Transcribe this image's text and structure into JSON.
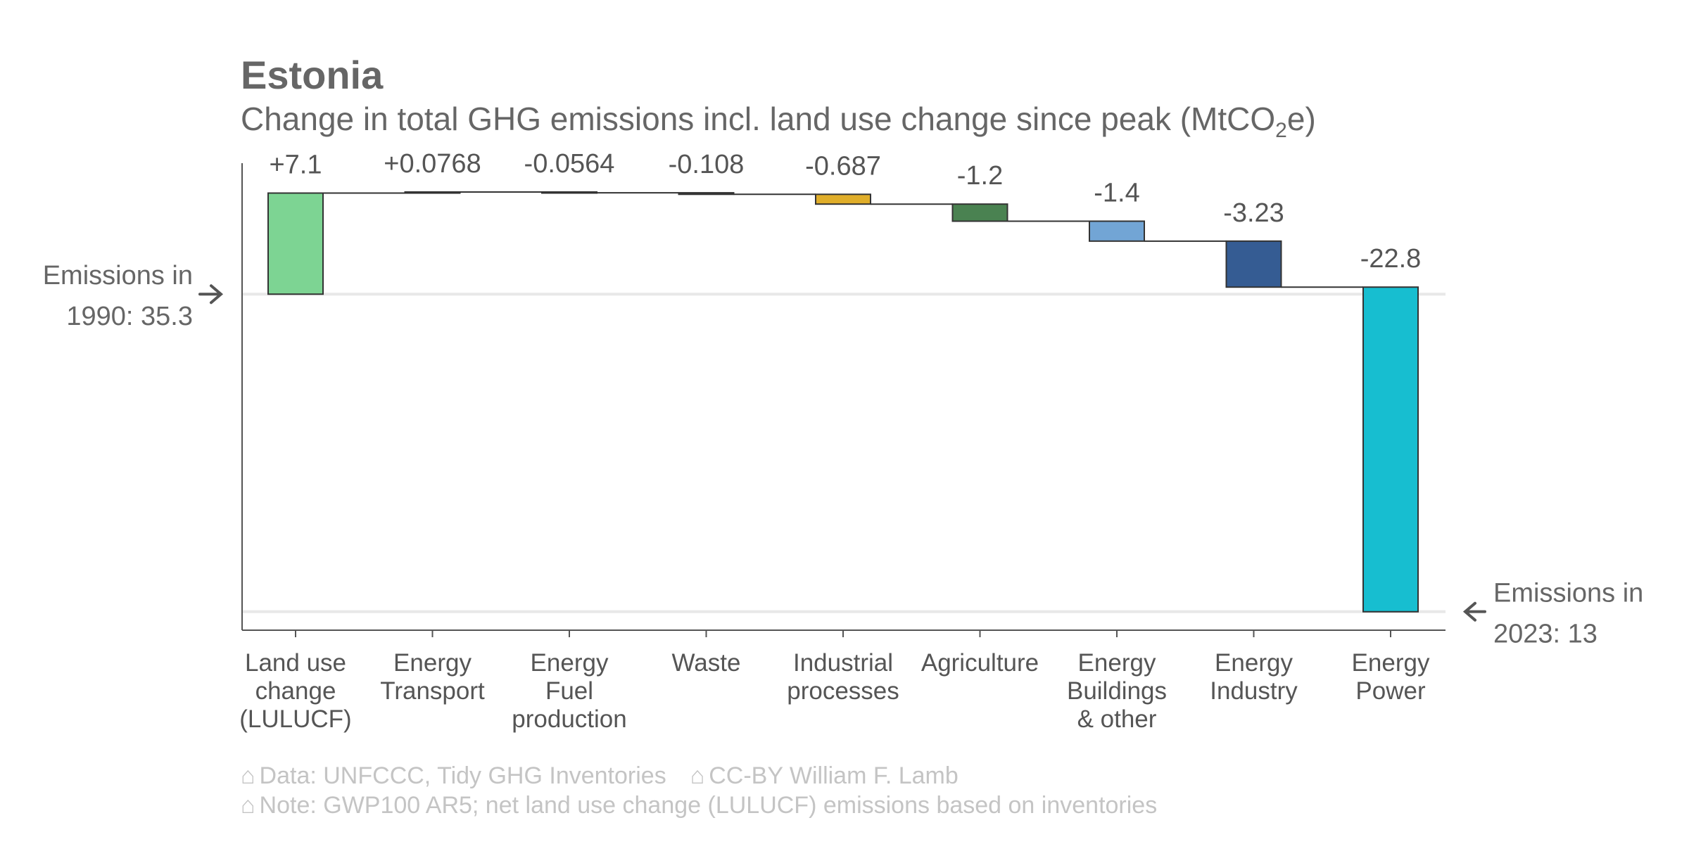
{
  "title": "Estonia",
  "subtitle_prefix": "Change in total GHG emissions incl. land use change since peak (MtCO",
  "subtitle_sub": "2",
  "subtitle_suffix": "e)",
  "start_annotation": [
    "Emissions in",
    "1990: 35.3"
  ],
  "end_annotation": [
    "Emissions in",
    "2023: 13"
  ],
  "caption": {
    "icon": "⌂",
    "data_source": "Data: UNFCCC, Tidy GHG Inventories",
    "license": "CC-BY William F. Lamb",
    "note": "Note: GWP100 AR5; net land use change (LULUCF) emissions based on inventories"
  },
  "chart_data": {
    "type": "bar",
    "subtype": "waterfall",
    "start_value": 35.3,
    "end_value": 13,
    "ylim": [
      11.7,
      44.5
    ],
    "categories": [
      [
        "Land use",
        "change",
        "(LULUCF)"
      ],
      [
        "Energy",
        "Transport"
      ],
      [
        "Energy",
        "Fuel",
        "production"
      ],
      [
        "Waste"
      ],
      [
        "Industrial",
        "processes"
      ],
      [
        "Agriculture"
      ],
      [
        "Energy",
        "Buildings",
        "& other"
      ],
      [
        "Energy",
        "Industry"
      ],
      [
        "Energy",
        "Power"
      ]
    ],
    "values": [
      7.1,
      0.0768,
      -0.0564,
      -0.108,
      -0.687,
      -1.2,
      -1.4,
      -3.23,
      -22.8
    ],
    "labels": [
      "+7.1",
      "+0.0768",
      "-0.0564",
      "-0.108",
      "-0.687",
      "-1.2",
      "-1.4",
      "-3.23",
      "-22.8"
    ],
    "colors": [
      "#7dd493",
      "#3a3a3a",
      "#3a3a3a",
      "#3a3a3a",
      "#e0ae2a",
      "#4a8251",
      "#72a5d5",
      "#355c93",
      "#17bed0"
    ]
  }
}
